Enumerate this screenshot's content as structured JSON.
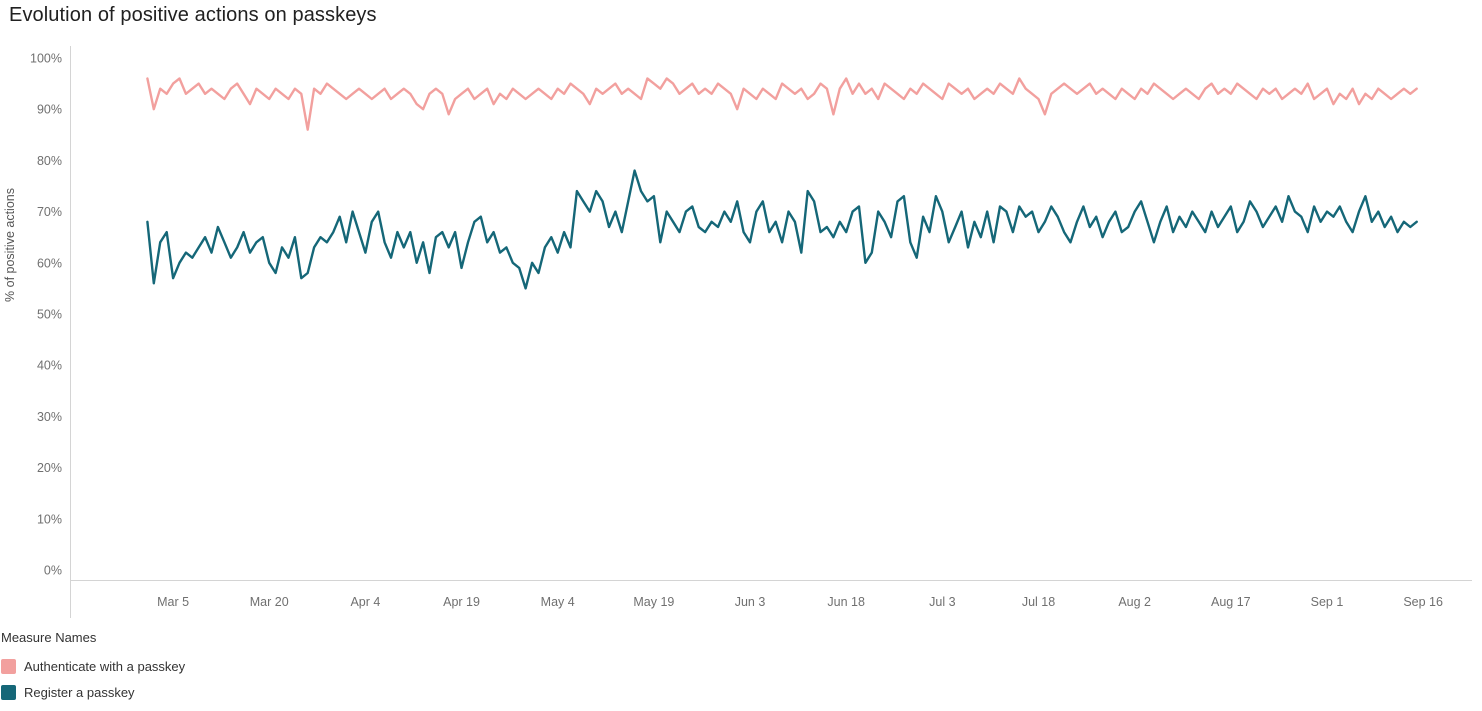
{
  "title": "Evolution of positive actions on passkeys",
  "legend": {
    "title": "Measure Names"
  },
  "colors": {
    "axis_line": "#d4d4d4",
    "tick_label": "#707070",
    "title_text": "#212121",
    "authenticate": "#f2a09e",
    "register": "#156778"
  },
  "chart_data": {
    "type": "line",
    "title": "Evolution of positive actions on passkeys",
    "xlabel": "",
    "ylabel": "% of positive actions",
    "ylim": [
      0,
      100
    ],
    "grid": false,
    "legend_position": "bottom-left",
    "x_start_label": "Mar 1",
    "x_unit": "day",
    "y_ticks": [
      {
        "value": 0,
        "label": "0%"
      },
      {
        "value": 10,
        "label": "10%"
      },
      {
        "value": 20,
        "label": "20%"
      },
      {
        "value": 30,
        "label": "30%"
      },
      {
        "value": 40,
        "label": "40%"
      },
      {
        "value": 50,
        "label": "50%"
      },
      {
        "value": 60,
        "label": "60%"
      },
      {
        "value": 70,
        "label": "70%"
      },
      {
        "value": 80,
        "label": "80%"
      },
      {
        "value": 90,
        "label": "90%"
      },
      {
        "value": 100,
        "label": "100%"
      }
    ],
    "x_ticks": [
      {
        "day": 4,
        "label": "Mar 5"
      },
      {
        "day": 19,
        "label": "Mar 20"
      },
      {
        "day": 34,
        "label": "Apr 4"
      },
      {
        "day": 49,
        "label": "Apr 19"
      },
      {
        "day": 64,
        "label": "May 4"
      },
      {
        "day": 79,
        "label": "May 19"
      },
      {
        "day": 94,
        "label": "Jun 3"
      },
      {
        "day": 109,
        "label": "Jun 18"
      },
      {
        "day": 124,
        "label": "Jul 3"
      },
      {
        "day": 139,
        "label": "Jul 18"
      },
      {
        "day": 154,
        "label": "Aug 2"
      },
      {
        "day": 169,
        "label": "Aug 17"
      },
      {
        "day": 184,
        "label": "Sep 1"
      },
      {
        "day": 199,
        "label": "Sep 16"
      }
    ],
    "series": [
      {
        "id": "authenticate",
        "name": "Authenticate with a passkey",
        "color": "#f2a09e",
        "values": [
          96,
          90,
          94,
          93,
          95,
          96,
          93,
          94,
          95,
          93,
          94,
          93,
          92,
          94,
          95,
          93,
          91,
          94,
          93,
          92,
          94,
          93,
          92,
          94,
          93,
          86,
          94,
          93,
          95,
          94,
          93,
          92,
          93,
          94,
          93,
          92,
          93,
          94,
          92,
          93,
          94,
          93,
          91,
          90,
          93,
          94,
          93,
          89,
          92,
          93,
          94,
          92,
          93,
          94,
          91,
          93,
          92,
          94,
          93,
          92,
          93,
          94,
          93,
          92,
          94,
          93,
          95,
          94,
          93,
          91,
          94,
          93,
          94,
          95,
          93,
          94,
          93,
          92,
          96,
          95,
          94,
          96,
          95,
          93,
          94,
          95,
          93,
          94,
          93,
          95,
          94,
          93,
          90,
          94,
          93,
          92,
          94,
          93,
          92,
          95,
          94,
          93,
          94,
          92,
          93,
          95,
          94,
          89,
          94,
          96,
          93,
          95,
          93,
          94,
          92,
          95,
          94,
          93,
          92,
          94,
          93,
          95,
          94,
          93,
          92,
          95,
          94,
          93,
          94,
          92,
          93,
          94,
          93,
          95,
          94,
          93,
          96,
          94,
          93,
          92,
          89,
          93,
          94,
          95,
          94,
          93,
          94,
          95,
          93,
          94,
          93,
          92,
          94,
          93,
          92,
          94,
          93,
          95,
          94,
          93,
          92,
          93,
          94,
          93,
          92,
          94,
          95,
          93,
          94,
          93,
          95,
          94,
          93,
          92,
          94,
          93,
          94,
          92,
          93,
          94,
          93,
          95,
          92,
          93,
          94,
          91,
          93,
          92,
          94,
          91,
          93,
          92,
          94,
          93,
          92,
          93,
          94,
          93,
          94
        ]
      },
      {
        "id": "register",
        "name": "Register a passkey",
        "color": "#156778",
        "values": [
          68,
          56,
          64,
          66,
          57,
          60,
          62,
          61,
          63,
          65,
          62,
          67,
          64,
          61,
          63,
          66,
          62,
          64,
          65,
          60,
          58,
          63,
          61,
          65,
          57,
          58,
          63,
          65,
          64,
          66,
          69,
          64,
          70,
          66,
          62,
          68,
          70,
          64,
          61,
          66,
          63,
          66,
          60,
          64,
          58,
          65,
          66,
          63,
          66,
          59,
          64,
          68,
          69,
          64,
          66,
          62,
          63,
          60,
          59,
          55,
          60,
          58,
          63,
          65,
          62,
          66,
          63,
          74,
          72,
          70,
          74,
          72,
          67,
          70,
          66,
          72,
          78,
          74,
          72,
          73,
          64,
          70,
          68,
          66,
          70,
          71,
          67,
          66,
          68,
          67,
          70,
          68,
          72,
          66,
          64,
          70,
          72,
          66,
          68,
          64,
          70,
          68,
          62,
          74,
          72,
          66,
          67,
          65,
          68,
          66,
          70,
          71,
          60,
          62,
          70,
          68,
          65,
          72,
          73,
          64,
          61,
          69,
          66,
          73,
          70,
          64,
          67,
          70,
          63,
          68,
          65,
          70,
          64,
          71,
          70,
          66,
          71,
          69,
          70,
          66,
          68,
          71,
          69,
          66,
          64,
          68,
          71,
          67,
          69,
          65,
          68,
          70,
          66,
          67,
          70,
          72,
          68,
          64,
          68,
          71,
          66,
          69,
          67,
          70,
          68,
          66,
          70,
          67,
          69,
          71,
          66,
          68,
          72,
          70,
          67,
          69,
          71,
          68,
          73,
          70,
          69,
          66,
          71,
          68,
          70,
          69,
          71,
          68,
          66,
          70,
          73,
          68,
          70,
          67,
          69,
          66,
          68,
          67,
          68
        ]
      }
    ]
  }
}
